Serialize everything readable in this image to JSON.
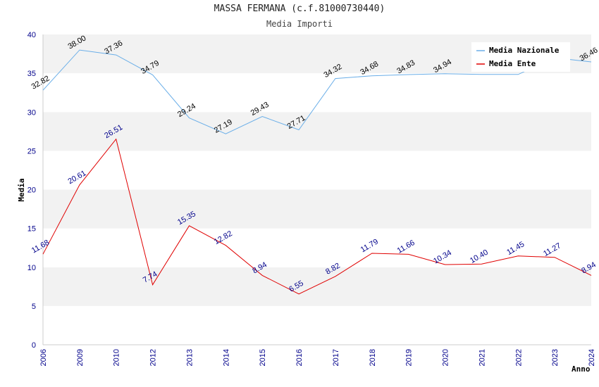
{
  "chart_data": {
    "type": "line",
    "title": "MASSA FERMANA (c.f.81000730440)",
    "subtitle": "Media Importi",
    "xlabel": "Anno",
    "ylabel": "Media",
    "ylim": [
      0,
      40
    ],
    "yticks": [
      0,
      5,
      10,
      15,
      20,
      25,
      30,
      35,
      40
    ],
    "categories": [
      "2006",
      "2009",
      "2010",
      "2012",
      "2013",
      "2014",
      "2015",
      "2016",
      "2017",
      "2018",
      "2019",
      "2020",
      "2021",
      "2022",
      "2023",
      "2024"
    ],
    "series": [
      {
        "name": "Media Nazionale",
        "color": "#6aaee8",
        "values": [
          32.82,
          38.0,
          37.36,
          34.79,
          29.24,
          27.19,
          29.43,
          27.71,
          34.32,
          34.68,
          34.83,
          34.94,
          34.85,
          34.85,
          37.0,
          36.46
        ],
        "labels": [
          "32.82",
          "38.00",
          "37.36",
          "34.79",
          "29.24",
          "27.19",
          "29.43",
          "27.71",
          "34.32",
          "34.68",
          "34.83",
          "34.94",
          "",
          "",
          "",
          "36.46"
        ]
      },
      {
        "name": "Media Ente",
        "color": "#e00000",
        "values": [
          11.68,
          20.61,
          26.51,
          7.74,
          15.35,
          12.82,
          8.94,
          6.55,
          8.82,
          11.79,
          11.66,
          10.34,
          10.4,
          11.45,
          11.27,
          8.94
        ],
        "labels": [
          "11.68",
          "20.61",
          "26.51",
          "7.74",
          "15.35",
          "12.82",
          "8.94",
          "6.55",
          "8.82",
          "11.79",
          "11.66",
          "10.34",
          "10.40",
          "11.45",
          "11.27",
          "8.94"
        ]
      }
    ],
    "legend": "top-right",
    "grid": true
  }
}
